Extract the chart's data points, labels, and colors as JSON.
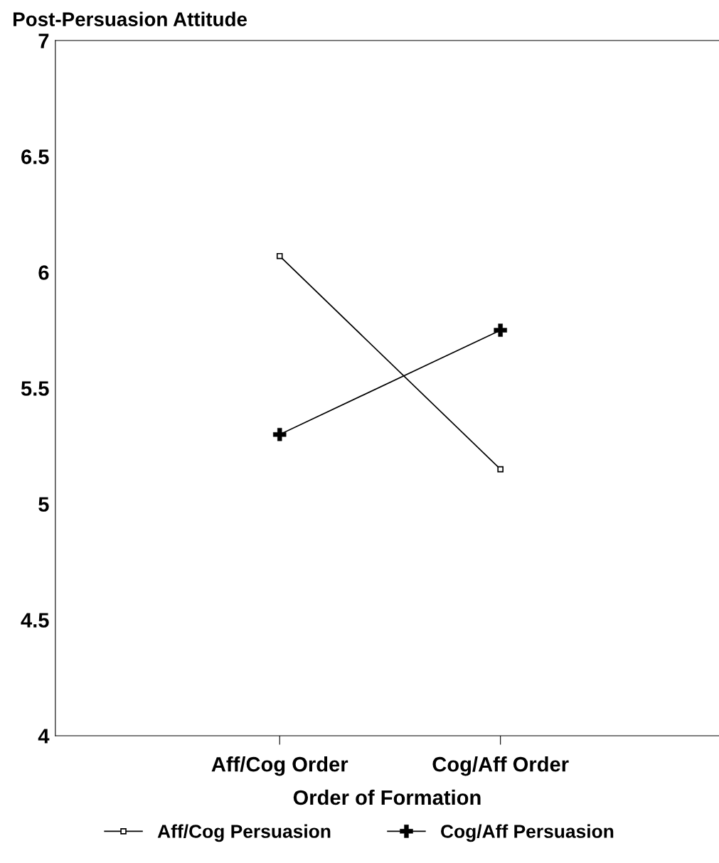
{
  "chart_data": {
    "type": "line",
    "ylabel": "Post-Persuasion Attitude",
    "xlabel": "Order of Formation",
    "categories": [
      "Aff/Cog Order",
      "Cog/Aff Order"
    ],
    "series": [
      {
        "name": "Aff/Cog Persuasion",
        "color": "#000000",
        "values": [
          6.07,
          5.15
        ],
        "marker": "square"
      },
      {
        "name": "Cog/Aff Persuasion",
        "color": "#000000",
        "values": [
          5.3,
          5.75
        ],
        "marker": "cross"
      }
    ],
    "ylim": [
      4,
      7
    ],
    "yticks": [
      4,
      4.5,
      5,
      5.5,
      6,
      6.5,
      7
    ],
    "grid": false,
    "legend": "bottom",
    "line_style": "solid"
  }
}
